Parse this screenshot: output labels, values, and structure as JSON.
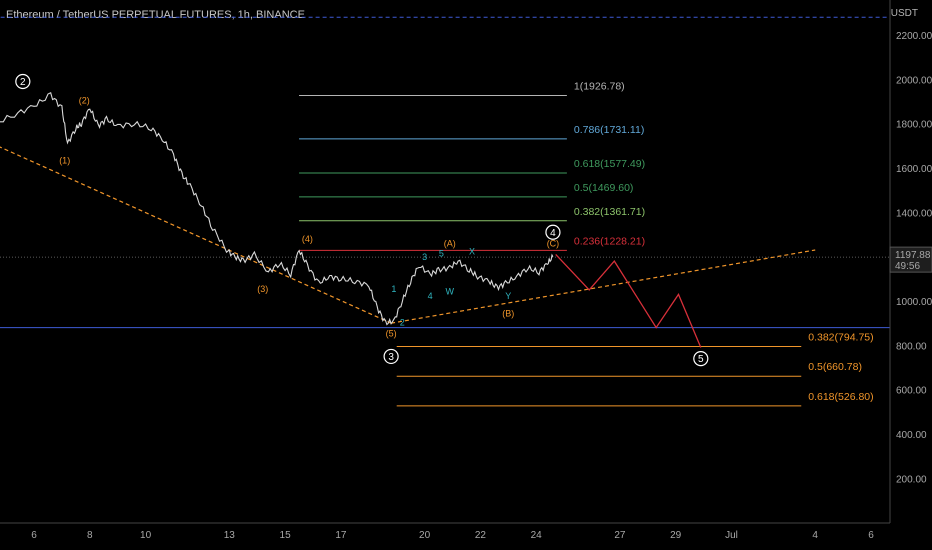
{
  "header": {
    "title": "Ethereum / TetherUS PERPETUAL FUTURES, 1h, BINANCE",
    "unit": "USDT"
  },
  "colors": {
    "background": "#000000",
    "orange": "#f0952a",
    "blue": "#3e5bd6",
    "red": "#d8303a",
    "cyan": "#2fb5c0",
    "grey_fib": "#b4b4b4",
    "lightblue_fib": "#61a8d8",
    "green_fib": "#3f9a5e",
    "light_green_fib": "#8cc26a",
    "price_tag": "#1e1e1e"
  },
  "chart_data": {
    "type": "line",
    "title": "Ethereum / TetherUS PERPETUAL FUTURES, 1h, BINANCE",
    "ylabel": "USDT",
    "ylim": [
      0,
      2320
    ],
    "y_ticks": [
      200,
      400,
      600,
      800,
      1000,
      1200,
      1400,
      1600,
      1800,
      2000,
      2200
    ],
    "y_tick_labels": [
      "200.00",
      "400.00",
      "600.00",
      "800.00",
      "1000.00",
      "1200.00",
      "1400.00",
      "1600.00",
      "1800.00",
      "2000.00",
      "2200.00"
    ],
    "x_tick_labels": [
      "6",
      "8",
      "10",
      "13",
      "15",
      "17",
      "20",
      "22",
      "24",
      "27",
      "29",
      "Jul",
      "4",
      "6"
    ],
    "x_tick_days": [
      6,
      8,
      10,
      13,
      15,
      17,
      20,
      22,
      24,
      27,
      29,
      31,
      34,
      36
    ],
    "x_axis_note": "June days, Jul = July 1",
    "price_series": {
      "name": "ETHUSDT 1h",
      "x": [
        3.8,
        4.5,
        5.3,
        6.0,
        6.6,
        7.0,
        7.2,
        7.5,
        7.7,
        8.0,
        8.3,
        8.6,
        9.0,
        9.6,
        10.2,
        10.6,
        11.0,
        11.3,
        11.6,
        12.0,
        12.4,
        12.9,
        13.2,
        13.5,
        13.9,
        14.4,
        14.8,
        15.2,
        15.5,
        15.8,
        16.2,
        16.6,
        17.0,
        17.5,
        18.0,
        18.3,
        18.6,
        18.9,
        19.2,
        19.5,
        19.8,
        20.2,
        20.5,
        20.9,
        21.2,
        21.6,
        21.9,
        22.3,
        22.6,
        22.9,
        23.3,
        23.7,
        24.1,
        24.4,
        24.6
      ],
      "y": [
        1790,
        1795,
        1840,
        1880,
        1930,
        1870,
        1710,
        1780,
        1800,
        1870,
        1790,
        1820,
        1790,
        1800,
        1780,
        1730,
        1660,
        1570,
        1520,
        1430,
        1330,
        1230,
        1200,
        1180,
        1210,
        1130,
        1170,
        1120,
        1230,
        1160,
        1080,
        1110,
        1100,
        1090,
        1070,
        970,
        900,
        910,
        1000,
        1090,
        1160,
        1120,
        1140,
        1150,
        1180,
        1140,
        1110,
        1090,
        1060,
        1080,
        1110,
        1150,
        1130,
        1170,
        1200
      ]
    },
    "last_price": "1197.88",
    "countdown": "49:56",
    "projection": {
      "x": [
        24.7,
        25.9,
        26.8,
        28.3,
        29.1,
        29.9
      ],
      "y": [
        1210,
        1050,
        1180,
        880,
        1030,
        790
      ]
    },
    "trendlines": [
      {
        "x": [
          3.8,
          18.8
        ],
        "y": [
          1750,
          900
        ],
        "style": "dashed",
        "color": "orange"
      },
      {
        "x": [
          18.8,
          34.0
        ],
        "y": [
          900,
          1230
        ],
        "style": "dashed",
        "color": "orange"
      }
    ],
    "horizontal_lines": [
      {
        "y": 880,
        "x": [
          3.8,
          38.0
        ],
        "color": "blue",
        "style": "solid"
      },
      {
        "y": 2280,
        "x": [
          3.8,
          38.0
        ],
        "color": "blue",
        "style": "dashed"
      }
    ],
    "fib_upper": [
      {
        "label": "1(1926.78)",
        "y": 1926.78,
        "color": "grey_fib"
      },
      {
        "label": "0.786(1731.11)",
        "y": 1731.11,
        "color": "lightblue_fib"
      },
      {
        "label": "0.618(1577.49)",
        "y": 1577.49,
        "color": "green_fib"
      },
      {
        "label": "0.5(1469.60)",
        "y": 1469.6,
        "color": "green_fib"
      },
      {
        "label": "0.382(1361.71)",
        "y": 1361.71,
        "color": "light_green_fib"
      },
      {
        "label": "0.236(1228.21)",
        "y": 1228.21,
        "color": "red"
      }
    ],
    "fib_upper_x": [
      15.5,
      25.1
    ],
    "fib_lower": [
      {
        "label": "0.382(794.75)",
        "y": 794.75,
        "color": "orange"
      },
      {
        "label": "0.5(660.78)",
        "y": 660.78,
        "color": "orange"
      },
      {
        "label": "0.618(526.80)",
        "y": 526.8,
        "color": "orange"
      }
    ],
    "fib_lower_x": [
      19.0,
      33.5
    ],
    "wave_labels": [
      {
        "text": "(2)",
        "x": 7.8,
        "y": 1890,
        "color": "orange"
      },
      {
        "text": "(1)",
        "x": 7.1,
        "y": 1620,
        "color": "orange"
      },
      {
        "text": "(3)",
        "x": 14.2,
        "y": 1040,
        "color": "orange"
      },
      {
        "text": "(4)",
        "x": 15.8,
        "y": 1265,
        "color": "orange"
      },
      {
        "text": "(5)",
        "x": 18.8,
        "y": 840,
        "color": "orange"
      },
      {
        "text": "(A)",
        "x": 20.9,
        "y": 1245,
        "color": "orange"
      },
      {
        "text": "(B)",
        "x": 23.0,
        "y": 930,
        "color": "orange"
      },
      {
        "text": "(C)",
        "x": 24.6,
        "y": 1245,
        "color": "orange"
      },
      {
        "text": "1",
        "x": 18.9,
        "y": 1040,
        "color": "cyan"
      },
      {
        "text": "2",
        "x": 19.2,
        "y": 890,
        "color": "cyan"
      },
      {
        "text": "3",
        "x": 20.0,
        "y": 1185,
        "color": "cyan"
      },
      {
        "text": "4",
        "x": 20.2,
        "y": 1010,
        "color": "cyan"
      },
      {
        "text": "5",
        "x": 20.6,
        "y": 1200,
        "color": "cyan"
      },
      {
        "text": "W",
        "x": 20.9,
        "y": 1030,
        "color": "cyan"
      },
      {
        "text": "X",
        "x": 21.7,
        "y": 1210,
        "color": "cyan"
      },
      {
        "text": "Y",
        "x": 23.0,
        "y": 1010,
        "color": "cyan"
      }
    ],
    "circled_labels": [
      {
        "text": "2",
        "x": 5.6,
        "y": 1990
      },
      {
        "text": "3",
        "x": 18.8,
        "y": 750
      },
      {
        "text": "4",
        "x": 24.6,
        "y": 1310
      },
      {
        "text": "5",
        "x": 29.9,
        "y": 740
      }
    ]
  }
}
